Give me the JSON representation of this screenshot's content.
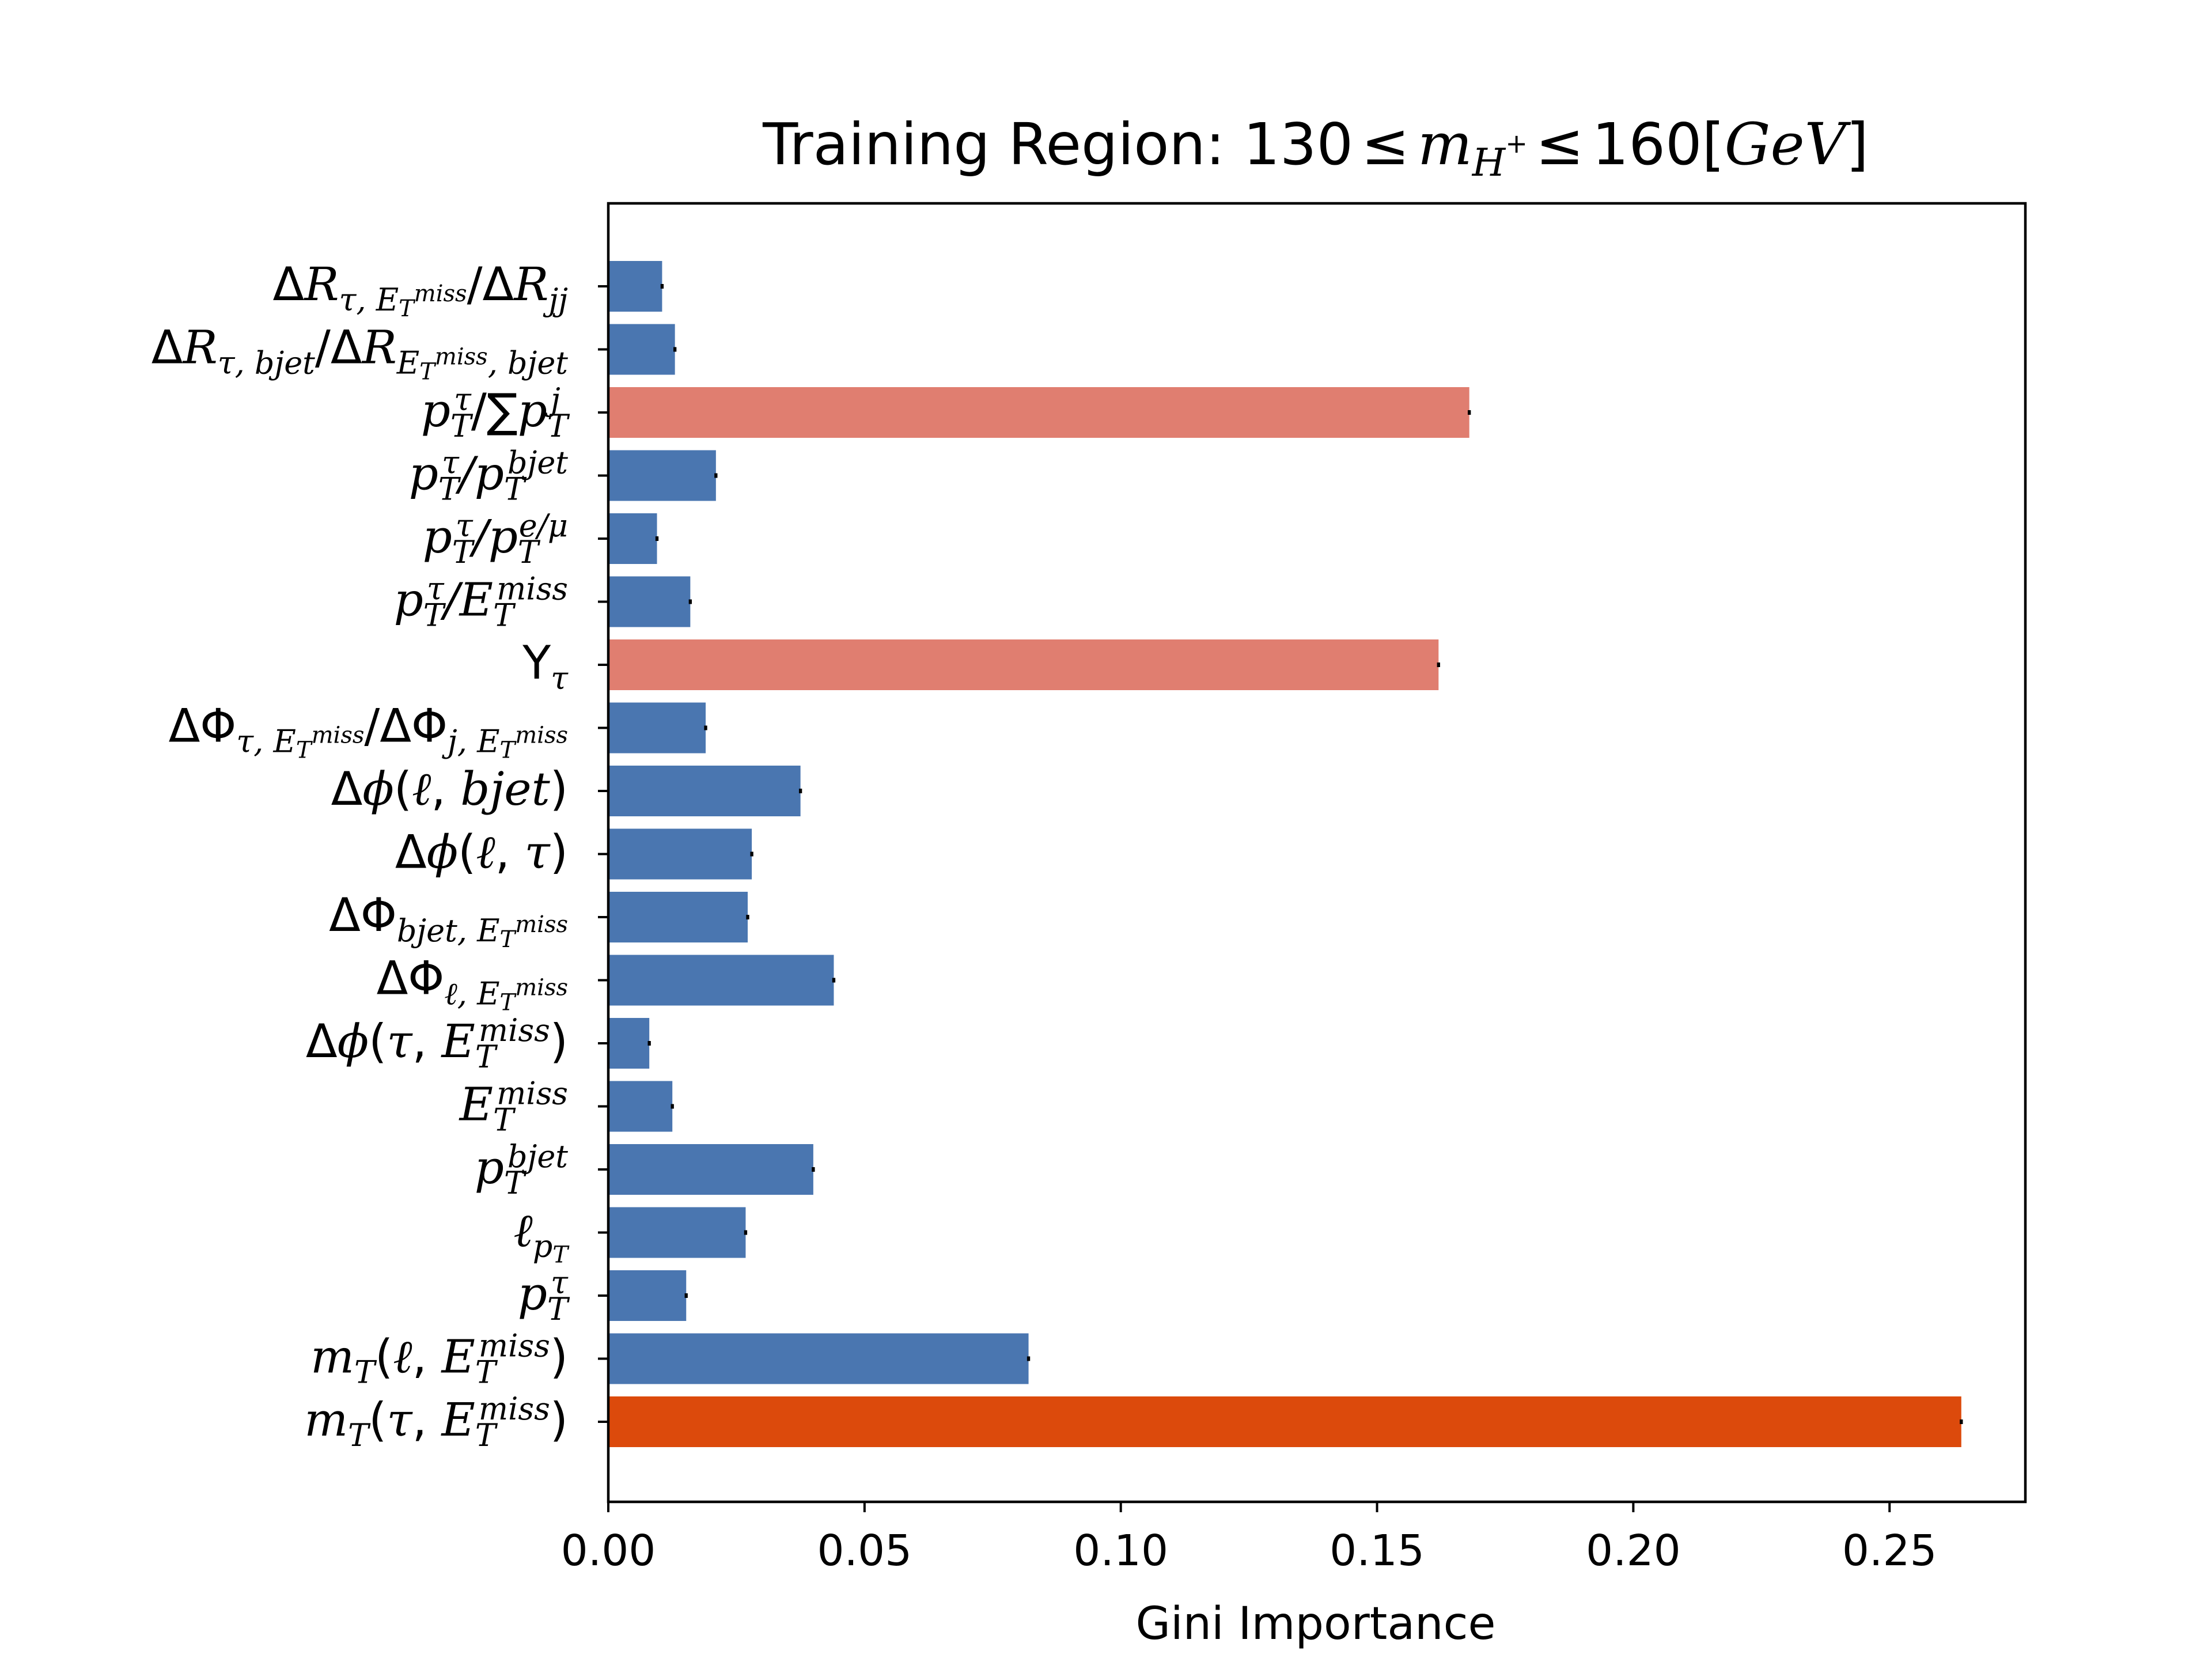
{
  "chart_data": {
    "type": "bar",
    "orientation": "horizontal",
    "title": "Training Region: 130 ≤ m_{H⁺} ≤ 160[GeV]",
    "xlabel": "Gini Importance",
    "ylabel": "",
    "xlim": [
      0.0,
      0.2765
    ],
    "xticks": [
      0.0,
      0.05,
      0.1,
      0.15,
      0.2,
      0.25
    ],
    "xtick_labels": [
      "0.00",
      "0.05",
      "0.10",
      "0.15",
      "0.20",
      "0.25"
    ],
    "grid": false,
    "legend": "none",
    "categories": [
      "ΔR_{τ,E_T^miss}/ΔR_{jj}",
      "ΔR_{τ,bjet}/ΔR_{E_T^miss,bjet}",
      "p_T^τ/∑p_T^j",
      "p_T^τ/p_T^bjet",
      "p_T^τ/p_T^{e/μ}",
      "p_T^τ/E_T^miss",
      "Υ_τ",
      "ΔΦ_{τ,E_T^miss}/ΔΦ_{j,E_T^miss}",
      "Δφ(ℓ,bjet)",
      "Δφ(ℓ,τ)",
      "ΔΦ_{bjet,E_T^miss}",
      "ΔΦ_{ℓ,E_T^miss}",
      "Δφ(τ,E_T^miss)",
      "E_T^miss",
      "p_T^bjet",
      "ℓ_{p_T}",
      "p_T^τ",
      "m_T(ℓ,E_T^miss)",
      "m_T(τ,E_T^miss)"
    ],
    "values": [
      0.0105,
      0.013,
      0.168,
      0.021,
      0.0095,
      0.016,
      0.162,
      0.019,
      0.0375,
      0.028,
      0.0272,
      0.044,
      0.008,
      0.0125,
      0.04,
      0.0268,
      0.0152,
      0.082,
      0.264
    ],
    "errors": [
      0.0003,
      0.0003,
      0.0003,
      0.0003,
      0.0003,
      0.0003,
      0.0003,
      0.0003,
      0.0003,
      0.0003,
      0.0003,
      0.0003,
      0.0003,
      0.0003,
      0.0003,
      0.0003,
      0.0003,
      0.0003,
      0.0003
    ],
    "bar_colors": [
      "#4a76b0",
      "#4a76b0",
      "#e07e70",
      "#4a76b0",
      "#4a76b0",
      "#4a76b0",
      "#e07e70",
      "#4a76b0",
      "#4a76b0",
      "#4a76b0",
      "#4a76b0",
      "#4a76b0",
      "#4a76b0",
      "#4a76b0",
      "#4a76b0",
      "#4a76b0",
      "#4a76b0",
      "#4a76b0",
      "#dc4a0c"
    ]
  }
}
